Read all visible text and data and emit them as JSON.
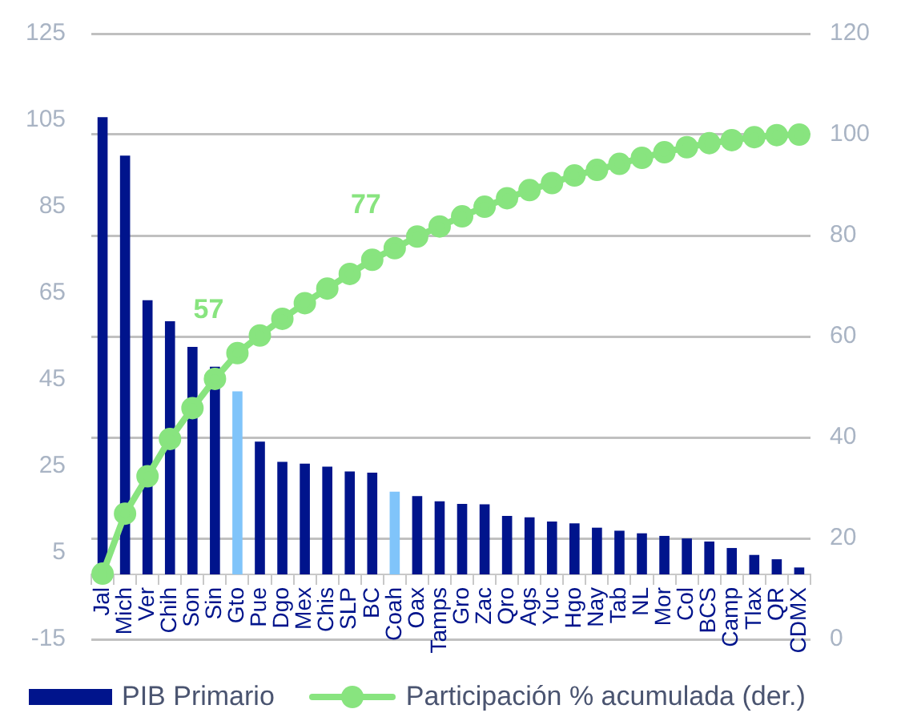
{
  "chart_data": {
    "type": "bar",
    "categories": [
      "Jal",
      "Mich",
      "Ver",
      "Chih",
      "Son",
      "Sin",
      "Gto",
      "Pue",
      "Dgo",
      "Mex",
      "Chis",
      "SLP",
      "BC",
      "Coah",
      "Oax",
      "Tamps",
      "Gro",
      "Zac",
      "Qro",
      "Ags",
      "Yuc",
      "Hgo",
      "Nay",
      "Tab",
      "NL",
      "Mor",
      "Col",
      "BCS",
      "Camp",
      "Tlax",
      "QR",
      "CDMX"
    ],
    "series": [
      {
        "name": "PIB Primario",
        "color": "#00148c",
        "colors": [
          "#00148c",
          "#00148c",
          "#00148c",
          "#00148c",
          "#00148c",
          "#00148c",
          "#80c4fa",
          "#00148c",
          "#00148c",
          "#00148c",
          "#00148c",
          "#00148c",
          "#00148c",
          "#80c4fa",
          "#00148c",
          "#00148c",
          "#00148c",
          "#00148c",
          "#00148c",
          "#00148c",
          "#00148c",
          "#00148c",
          "#00148c",
          "#00148c",
          "#00148c",
          "#00148c",
          "#00148c",
          "#00148c",
          "#00148c",
          "#00148c",
          "#00148c",
          "#00148c"
        ],
        "values": [
          105.7,
          96.8,
          63.4,
          58.5,
          52.6,
          48.0,
          42.3,
          30.7,
          26.0,
          25.6,
          24.9,
          23.8,
          23.5,
          19.1,
          18.1,
          16.9,
          16.3,
          16.2,
          13.5,
          13.2,
          12.2,
          11.8,
          10.8,
          10.1,
          9.5,
          8.9,
          8.3,
          7.6,
          6.1,
          4.5,
          3.5,
          1.6
        ]
      },
      {
        "name": "Participación % acumulada (der.)",
        "type": "line",
        "axis": "y2",
        "color": "#88e47f",
        "values": [
          13.0,
          24.9,
          32.3,
          39.7,
          45.8,
          51.6,
          56.7,
          60.2,
          63.5,
          66.6,
          69.5,
          72.4,
          75.2,
          77.5,
          79.8,
          81.8,
          83.8,
          85.7,
          87.4,
          89.0,
          90.4,
          91.9,
          93.0,
          94.2,
          95.4,
          96.5,
          97.5,
          98.3,
          98.9,
          99.5,
          99.9,
          100.0
        ],
        "value_labels": [
          null,
          null,
          null,
          null,
          null,
          null,
          "57",
          null,
          null,
          null,
          null,
          null,
          null,
          "77",
          null,
          null,
          null,
          null,
          null,
          null,
          null,
          null,
          null,
          null,
          null,
          null,
          null,
          null,
          null,
          null,
          null,
          null
        ]
      }
    ],
    "ylim": [
      -15,
      125
    ],
    "yticks": [
      -15,
      5,
      25,
      45,
      65,
      85,
      105,
      125
    ],
    "y2lim": [
      0,
      120
    ],
    "y2ticks": [
      0,
      20,
      40,
      60,
      80,
      100,
      120
    ],
    "grid": "y",
    "legend": "bottom",
    "marker": "circle"
  }
}
